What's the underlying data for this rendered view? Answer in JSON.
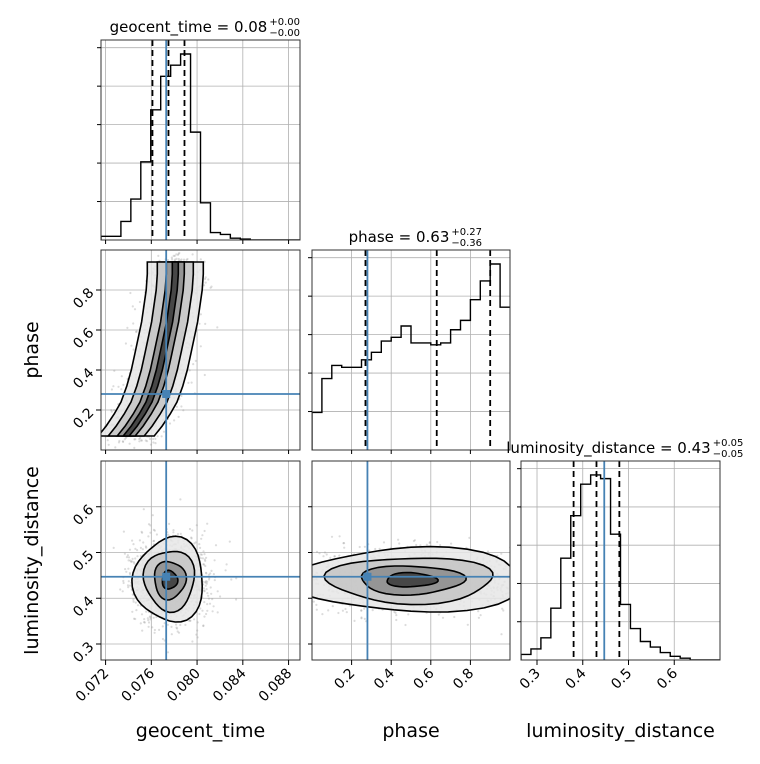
{
  "chart_data": {
    "type": "corner",
    "params": [
      "geocent_time",
      "phase",
      "luminosity_distance"
    ],
    "axis_labels": {
      "geocent_time": "geocent_time",
      "phase": "phase",
      "luminosity_distance": "luminosity_distance"
    },
    "titles": [
      {
        "param": "geocent_time",
        "name": "geocent_time",
        "median": "0.08",
        "plus": "+0.00",
        "minus": "−0.00"
      },
      {
        "param": "phase",
        "name": "phase",
        "median": "0.63",
        "plus": "+0.27",
        "minus": "−0.36"
      },
      {
        "param": "luminosity_distance",
        "name": "luminosity_distance",
        "median": "0.43",
        "plus": "+0.05",
        "minus": "−0.05"
      }
    ],
    "ranges": {
      "geocent_time": [
        0.0716,
        0.089
      ],
      "phase": [
        0.0,
        1.0
      ],
      "luminosity_distance": [
        0.265,
        0.7
      ]
    },
    "ticks": {
      "geocent_time": {
        "values": [
          0.072,
          0.076,
          0.08,
          0.084,
          0.088
        ],
        "labels": [
          "0.072",
          "0.076",
          "0.080",
          "0.084",
          "0.088"
        ]
      },
      "phase": {
        "values": [
          0.2,
          0.4,
          0.6,
          0.8
        ],
        "labels": [
          "0.2",
          "0.4",
          "0.6",
          "0.8"
        ]
      },
      "luminosity_distance": {
        "values": [
          0.3,
          0.4,
          0.5,
          0.6
        ],
        "labels": [
          "0.3",
          "0.4",
          "0.5",
          "0.6"
        ]
      }
    },
    "truths": {
      "geocent_time": 0.0773,
      "phase": 0.28,
      "luminosity_distance": 0.447
    },
    "quantiles": {
      "geocent_time": [
        0.0761,
        0.0775,
        0.0789
      ],
      "phase": [
        0.27,
        0.63,
        0.9
      ],
      "luminosity_distance": [
        0.38,
        0.43,
        0.48
      ]
    },
    "histograms": {
      "geocent_time": {
        "edges_start": 0.0716,
        "bin_width": 0.00087,
        "counts": [
          0.02,
          0.02,
          0.1,
          0.22,
          0.42,
          0.7,
          0.88,
          0.94,
          1.0,
          0.58,
          0.2,
          0.04,
          0.03,
          0.01,
          0.005,
          0,
          0,
          0,
          0,
          0
        ]
      },
      "phase": {
        "edges_start": 0.0,
        "bin_width": 0.05,
        "counts": [
          0.2,
          0.38,
          0.45,
          0.44,
          0.44,
          0.48,
          0.52,
          0.58,
          0.6,
          0.66,
          0.57,
          0.57,
          0.56,
          0.57,
          0.64,
          0.69,
          0.8,
          0.9,
          0.99,
          0.76
        ]
      },
      "luminosity_distance": {
        "edges_start": 0.265,
        "bin_width": 0.02175,
        "counts": [
          0.03,
          0.06,
          0.12,
          0.28,
          0.55,
          0.78,
          0.95,
          1.0,
          0.98,
          0.68,
          0.3,
          0.17,
          0.1,
          0.07,
          0.04,
          0.02,
          0.01,
          0,
          0,
          0
        ]
      }
    },
    "density_2d": {
      "phase_vs_geocent_time": {
        "points": [
          [
            0.0738,
            0.07
          ],
          [
            0.0745,
            0.12
          ],
          [
            0.0752,
            0.18
          ],
          [
            0.0758,
            0.24
          ],
          [
            0.0763,
            0.32
          ],
          [
            0.0767,
            0.4
          ],
          [
            0.077,
            0.48
          ],
          [
            0.0773,
            0.56
          ],
          [
            0.0776,
            0.64
          ],
          [
            0.0778,
            0.72
          ],
          [
            0.078,
            0.8
          ],
          [
            0.0781,
            0.88
          ],
          [
            0.0781,
            0.94
          ]
        ]
      },
      "luminosity_distance_vs_geocent_time": {
        "center": [
          0.0776,
          0.44
        ]
      },
      "luminosity_distance_vs_phase": {
        "center": [
          0.5,
          0.44
        ]
      }
    },
    "colors": {
      "truth": "#4682b4",
      "line": "#000000",
      "grid": "#b0b0b0"
    },
    "grid": true
  }
}
